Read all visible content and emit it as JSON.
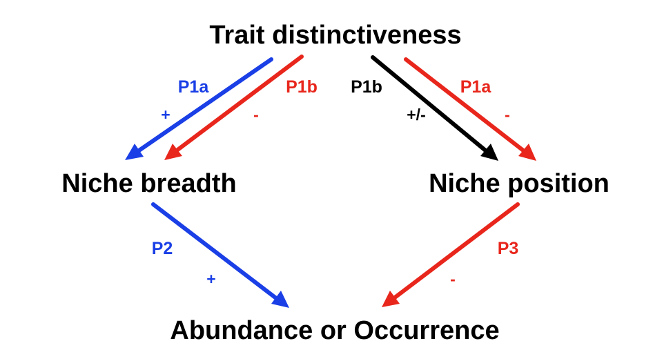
{
  "colors": {
    "blue": "#1a3fe6",
    "red": "#e8261c",
    "black": "#000000",
    "background": "#ffffff"
  },
  "nodes": {
    "trait": "Trait distinctiveness",
    "breadth": "Niche breadth",
    "position": "Niche position",
    "abundance": "Abundance or Occurrence"
  },
  "paths": {
    "trait_breadth_p1a": {
      "label": "P1a",
      "sign": "+",
      "color": "blue"
    },
    "trait_breadth_p1b": {
      "label": "P1b",
      "sign": "-",
      "color": "red"
    },
    "trait_position_p1b": {
      "label": "P1b",
      "sign": "+/-",
      "color": "black"
    },
    "trait_position_p1a": {
      "label": "P1a",
      "sign": "-",
      "color": "red"
    },
    "breadth_abundance_p2": {
      "label": "P2",
      "sign": "+",
      "color": "blue"
    },
    "position_abundance_p3": {
      "label": "P3",
      "sign": "-",
      "color": "red"
    }
  }
}
